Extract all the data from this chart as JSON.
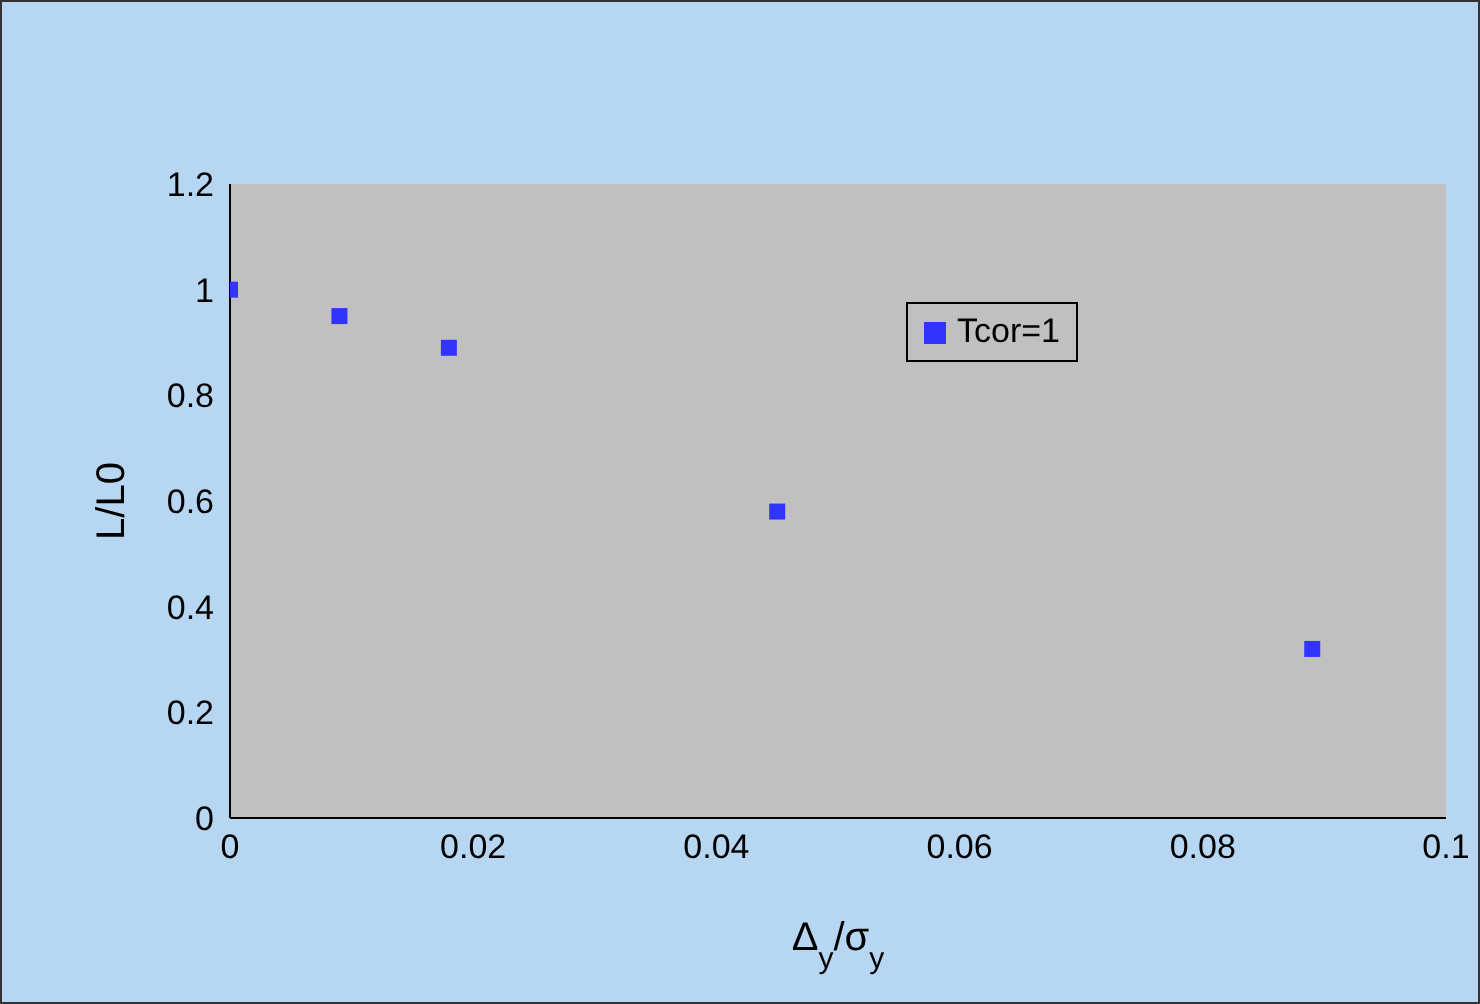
{
  "chart_data": {
    "type": "scatter",
    "xlabel": "Δ$_{y}$/σ$_{y}$",
    "ylabel": "L/L0",
    "x": [
      0,
      0.009,
      0.018,
      0.045,
      0.089
    ],
    "series": [
      {
        "name": "Tcor=1",
        "color": "#3333ff",
        "values": [
          1.0,
          0.95,
          0.89,
          0.58,
          0.32
        ]
      }
    ],
    "xlim": [
      0,
      0.1
    ],
    "xticks": [
      0,
      0.02,
      0.04,
      0.06,
      0.08,
      0.1
    ],
    "ylim": [
      0,
      1.2
    ],
    "yticks": [
      0,
      0.2,
      0.4,
      0.6,
      0.8,
      1,
      1.2
    ],
    "marker": "square",
    "legend": "right",
    "grid": false
  }
}
